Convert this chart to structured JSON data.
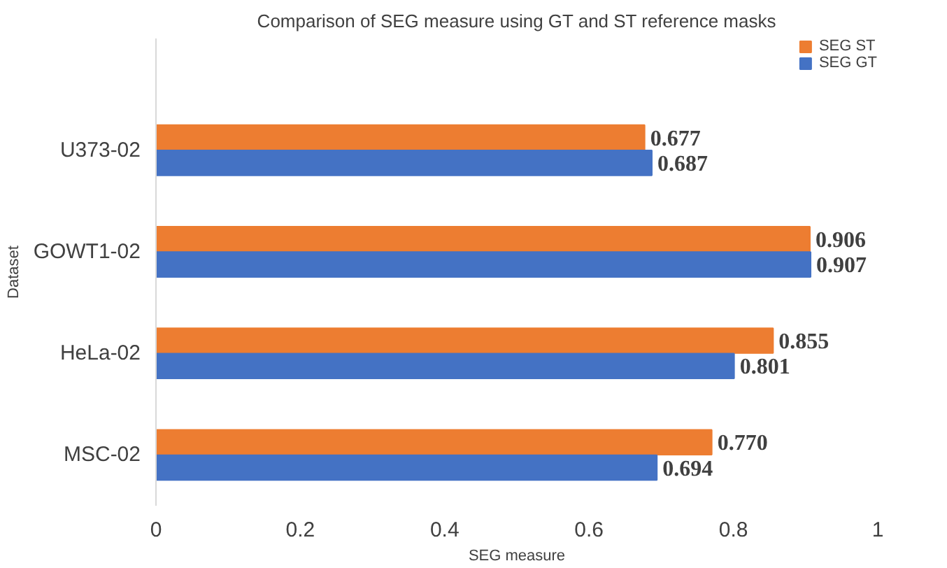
{
  "chart_data": {
    "type": "bar",
    "orientation": "horizontal",
    "title": "Comparison of SEG measure using GT and ST reference masks",
    "xlabel": "SEG measure",
    "ylabel": "Dataset",
    "categories": [
      "U373-02",
      "GOWT1-02",
      "HeLa-02",
      "MSC-02"
    ],
    "series": [
      {
        "name": "SEG ST",
        "color": "#ed7d31",
        "values": [
          0.677,
          0.906,
          0.855,
          0.77
        ],
        "value_labels": [
          "0.677",
          "0.906",
          "0.855",
          "0.770"
        ]
      },
      {
        "name": "SEG GT",
        "color": "#4472c4",
        "values": [
          0.687,
          0.907,
          0.801,
          0.694
        ],
        "value_labels": [
          "0.687",
          "0.907",
          "0.801",
          "0.694"
        ]
      }
    ],
    "xlim": [
      0,
      1
    ],
    "xticks": [
      0,
      0.2,
      0.4,
      0.6,
      0.8,
      1
    ],
    "grid": false,
    "legend": "top right"
  }
}
